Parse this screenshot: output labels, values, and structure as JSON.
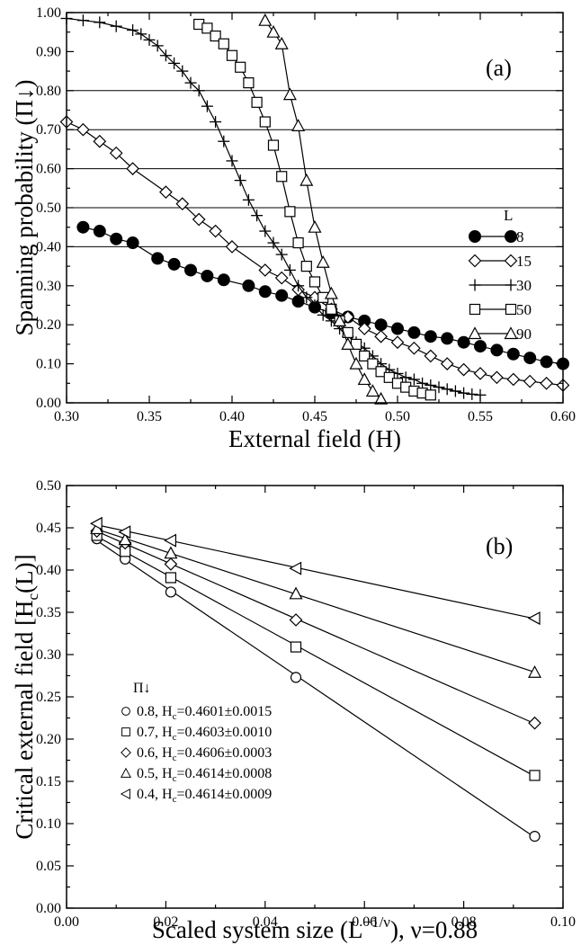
{
  "chart_data": [
    {
      "panel": "(a)",
      "type": "line",
      "xlabel": "External field (H)",
      "ylabel": "Spanning probability (Π↓)",
      "xlim": [
        0.3,
        0.6
      ],
      "ylim": [
        0.0,
        1.0
      ],
      "xticks": [
        "0.30",
        "0.35",
        "0.40",
        "0.45",
        "0.50",
        "0.55",
        "0.60"
      ],
      "yticks": [
        "0.00",
        "0.10",
        "0.20",
        "0.30",
        "0.40",
        "0.50",
        "0.60",
        "0.70",
        "0.80",
        "0.90",
        "1.00"
      ],
      "reference_lines_y": [
        0.4,
        0.5,
        0.6,
        0.7,
        0.8
      ],
      "legend_title": "L",
      "legend_position": "right-middle",
      "series": [
        {
          "name": "8",
          "marker": "filled-circle",
          "x": [
            0.31,
            0.32,
            0.33,
            0.34,
            0.355,
            0.365,
            0.375,
            0.385,
            0.395,
            0.41,
            0.42,
            0.43,
            0.44,
            0.45,
            0.46,
            0.47,
            0.48,
            0.49,
            0.5,
            0.51,
            0.52,
            0.53,
            0.54,
            0.55,
            0.56,
            0.57,
            0.58,
            0.59,
            0.6
          ],
          "y": [
            0.45,
            0.44,
            0.42,
            0.41,
            0.37,
            0.355,
            0.34,
            0.325,
            0.315,
            0.3,
            0.285,
            0.275,
            0.26,
            0.245,
            0.23,
            0.22,
            0.21,
            0.2,
            0.19,
            0.18,
            0.17,
            0.165,
            0.155,
            0.145,
            0.135,
            0.125,
            0.115,
            0.105,
            0.1
          ]
        },
        {
          "name": "15",
          "marker": "open-diamond",
          "x": [
            0.3,
            0.31,
            0.32,
            0.33,
            0.34,
            0.36,
            0.37,
            0.38,
            0.39,
            0.4,
            0.42,
            0.43,
            0.44,
            0.45,
            0.46,
            0.47,
            0.48,
            0.49,
            0.5,
            0.51,
            0.52,
            0.53,
            0.54,
            0.55,
            0.56,
            0.57,
            0.58,
            0.59,
            0.6
          ],
          "y": [
            0.72,
            0.7,
            0.67,
            0.64,
            0.6,
            0.54,
            0.51,
            0.47,
            0.44,
            0.4,
            0.34,
            0.32,
            0.29,
            0.27,
            0.24,
            0.22,
            0.19,
            0.17,
            0.155,
            0.14,
            0.12,
            0.1,
            0.085,
            0.075,
            0.065,
            0.06,
            0.055,
            0.05,
            0.045
          ]
        },
        {
          "name": "30",
          "marker": "plus",
          "x": [
            0.3,
            0.31,
            0.32,
            0.33,
            0.34,
            0.345,
            0.35,
            0.355,
            0.36,
            0.365,
            0.37,
            0.375,
            0.38,
            0.385,
            0.39,
            0.395,
            0.4,
            0.405,
            0.41,
            0.415,
            0.42,
            0.425,
            0.43,
            0.435,
            0.44,
            0.445,
            0.45,
            0.455,
            0.46,
            0.465,
            0.47,
            0.475,
            0.48,
            0.485,
            0.49,
            0.495,
            0.5,
            0.505,
            0.51,
            0.515,
            0.52,
            0.525,
            0.53,
            0.535,
            0.54,
            0.545,
            0.55
          ],
          "y": [
            0.985,
            0.98,
            0.975,
            0.965,
            0.955,
            0.945,
            0.93,
            0.915,
            0.89,
            0.87,
            0.85,
            0.82,
            0.8,
            0.76,
            0.72,
            0.67,
            0.62,
            0.57,
            0.52,
            0.48,
            0.44,
            0.41,
            0.38,
            0.34,
            0.3,
            0.27,
            0.25,
            0.225,
            0.21,
            0.19,
            0.17,
            0.155,
            0.14,
            0.12,
            0.1,
            0.085,
            0.075,
            0.065,
            0.06,
            0.05,
            0.045,
            0.04,
            0.035,
            0.03,
            0.025,
            0.022,
            0.02
          ]
        },
        {
          "name": "50",
          "marker": "open-square",
          "x": [
            0.38,
            0.385,
            0.39,
            0.395,
            0.4,
            0.405,
            0.41,
            0.415,
            0.42,
            0.425,
            0.43,
            0.435,
            0.44,
            0.445,
            0.45,
            0.455,
            0.46,
            0.465,
            0.47,
            0.475,
            0.48,
            0.485,
            0.49,
            0.495,
            0.5,
            0.505,
            0.51,
            0.515,
            0.52
          ],
          "y": [
            0.97,
            0.96,
            0.94,
            0.92,
            0.89,
            0.86,
            0.82,
            0.77,
            0.72,
            0.66,
            0.58,
            0.49,
            0.41,
            0.35,
            0.31,
            0.27,
            0.24,
            0.21,
            0.18,
            0.15,
            0.12,
            0.1,
            0.08,
            0.065,
            0.05,
            0.04,
            0.03,
            0.025,
            0.02
          ]
        },
        {
          "name": "90",
          "marker": "open-triangle",
          "x": [
            0.42,
            0.425,
            0.43,
            0.435,
            0.44,
            0.445,
            0.45,
            0.455,
            0.46,
            0.465,
            0.47,
            0.475,
            0.48,
            0.485,
            0.49
          ],
          "y": [
            0.98,
            0.95,
            0.92,
            0.79,
            0.71,
            0.57,
            0.45,
            0.36,
            0.28,
            0.21,
            0.15,
            0.1,
            0.06,
            0.03,
            0.01
          ]
        }
      ]
    },
    {
      "panel": "(b)",
      "type": "scatter",
      "xlabel": "Scaled system size (L",
      "xlabel_sup": "−1/ν",
      "xlabel_tail": "), ν=0.88",
      "ylabel": "Critical external field [H",
      "ylabel_sub": "c",
      "ylabel_tail": "(L)]",
      "xlim": [
        0.0,
        0.1
      ],
      "ylim": [
        0.0,
        0.5
      ],
      "xticks": [
        "0.00",
        "0.02",
        "0.04",
        "0.06",
        "0.08",
        "0.10"
      ],
      "yticks": [
        "0.00",
        "0.05",
        "0.10",
        "0.15",
        "0.20",
        "0.25",
        "0.30",
        "0.35",
        "0.40",
        "0.45",
        "0.50"
      ],
      "legend_title": "Π↓",
      "legend_position": "lower-left",
      "x": [
        0.0061,
        0.0118,
        0.021,
        0.0462,
        0.0943
      ],
      "series": [
        {
          "name": "0.8, H",
          "sub": "c",
          "tail": "=0.4601±0.0015",
          "marker": "open-circle",
          "y": [
            0.437,
            0.413,
            0.374,
            0.273,
            0.085
          ],
          "fit": [
            0.4601,
            0.0
          ]
        },
        {
          "name": "0.7, H",
          "sub": "c",
          "tail": "=0.4603±0.0010",
          "marker": "open-square",
          "y": [
            0.441,
            0.422,
            0.391,
            0.309,
            0.157
          ],
          "fit": [
            0.4603,
            0.0
          ]
        },
        {
          "name": "0.6, H",
          "sub": "c",
          "tail": "=0.4606±0.0003",
          "marker": "open-diamond",
          "y": [
            0.446,
            0.432,
            0.407,
            0.341,
            0.219
          ],
          "fit": [
            0.4606,
            0.0
          ]
        },
        {
          "name": "0.5, H",
          "sub": "c",
          "tail": "=0.4614±0.0008",
          "marker": "open-triangle",
          "y": [
            0.449,
            0.436,
            0.42,
            0.372,
            0.279
          ],
          "fit": [
            0.4614,
            0.0
          ]
        },
        {
          "name": "0.4, H",
          "sub": "c",
          "tail": "=0.4614±0.0009",
          "marker": "open-left-triangle",
          "y": [
            0.455,
            0.445,
            0.435,
            0.402,
            0.343
          ],
          "fit": [
            0.4614,
            0.0
          ]
        }
      ]
    }
  ]
}
